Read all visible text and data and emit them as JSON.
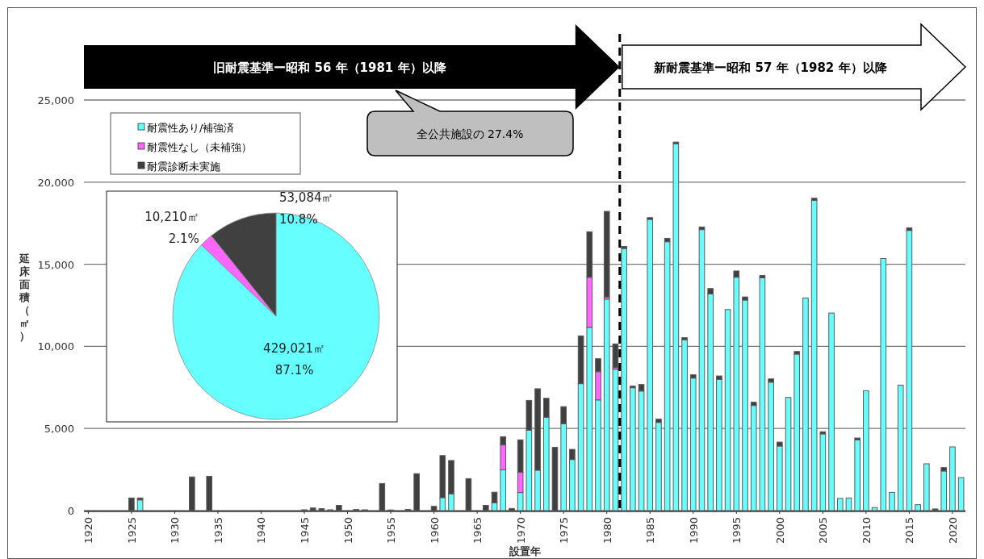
{
  "chart_data": [
    {
      "type": "bar",
      "stacked": true,
      "xlabel": "設置年",
      "ylabel": "延床面積（㎡）",
      "xlim": [
        1919.5,
        2021.5
      ],
      "xticks": [
        1920,
        1925,
        1930,
        1935,
        1940,
        1945,
        1950,
        1955,
        1960,
        1965,
        1970,
        1975,
        1980,
        1985,
        1990,
        1995,
        2000,
        2005,
        2010,
        2015,
        2020
      ],
      "ylim": [
        0,
        25000
      ],
      "yticks": [
        0,
        {
          "value": 5000,
          "label": "5,000"
        },
        {
          "value": 10000,
          "label": "10,000"
        },
        {
          "value": 15000,
          "label": "15,000"
        },
        {
          "value": 20000,
          "label": "20,000"
        },
        {
          "value": 25000,
          "label": "25,000"
        }
      ],
      "grid": "y",
      "legend": "top left",
      "x": [
        1925,
        1926,
        1932,
        1934,
        1945,
        1946,
        1947,
        1948,
        1949,
        1951,
        1952,
        1954,
        1955,
        1957,
        1958,
        1960,
        1961,
        1962,
        1964,
        1966,
        1967,
        1968,
        1969,
        1970,
        1971,
        1972,
        1973,
        1974,
        1975,
        1976,
        1977,
        1978,
        1979,
        1980,
        1981,
        1982,
        1983,
        1984,
        1985,
        1986,
        1987,
        1988,
        1989,
        1990,
        1991,
        1992,
        1993,
        1994,
        1995,
        1996,
        1997,
        1998,
        1999,
        2000,
        2001,
        2002,
        2003,
        2004,
        2005,
        2006,
        2007,
        2008,
        2009,
        2010,
        2011,
        2012,
        2013,
        2014,
        2015,
        2016,
        2017,
        2018,
        2019,
        2020,
        2021
      ],
      "series": [
        {
          "name": "耐震性あり/補強済",
          "color": "#66ffff",
          "values": [
            0,
            650,
            0,
            0,
            0,
            0,
            0,
            0,
            0,
            0,
            0,
            0,
            0,
            0,
            0,
            0,
            790,
            1020,
            0,
            0,
            480,
            2480,
            0,
            1100,
            4900,
            2460,
            5680,
            0,
            5290,
            3110,
            7730,
            11160,
            6740,
            12880,
            8610,
            15960,
            7480,
            7280,
            17730,
            5370,
            16370,
            22340,
            10400,
            8070,
            17110,
            13190,
            7990,
            12240,
            14210,
            12820,
            6400,
            14180,
            7820,
            3930,
            6890,
            9530,
            12950,
            18890,
            4670,
            12030,
            740,
            770,
            4310,
            7300,
            180,
            15350,
            1110,
            7640,
            17060,
            360,
            2850,
            0,
            2410,
            3880,
            2010
          ]
        },
        {
          "name": "耐震性なし（未補強）",
          "color": "#ff66ff",
          "values": [
            0,
            0,
            0,
            0,
            0,
            0,
            0,
            0,
            0,
            0,
            0,
            0,
            0,
            0,
            0,
            0,
            0,
            0,
            0,
            0,
            0,
            1520,
            0,
            1230,
            0,
            0,
            0,
            0,
            0,
            0,
            0,
            3050,
            1720,
            130,
            100,
            0,
            0,
            0,
            0,
            0,
            0,
            0,
            0,
            0,
            0,
            0,
            0,
            0,
            0,
            0,
            0,
            0,
            0,
            0,
            0,
            0,
            0,
            0,
            0,
            0,
            0,
            0,
            0,
            0,
            0,
            0,
            0,
            0,
            0,
            0,
            0,
            0,
            0,
            0,
            0
          ]
        },
        {
          "name": "耐震診断未実施",
          "color": "#404040",
          "values": [
            770,
            120,
            2050,
            2090,
            50,
            160,
            120,
            50,
            320,
            70,
            50,
            1650,
            40,
            70,
            2250,
            260,
            2560,
            2030,
            1950,
            320,
            640,
            500,
            130,
            1980,
            1810,
            4960,
            1160,
            3850,
            1040,
            620,
            2910,
            2770,
            790,
            5210,
            1440,
            130,
            100,
            400,
            110,
            200,
            210,
            100,
            130,
            200,
            160,
            330,
            210,
            0,
            380,
            190,
            200,
            140,
            200,
            240,
            0,
            160,
            0,
            130,
            130,
            0,
            0,
            0,
            110,
            0,
            0,
            0,
            0,
            0,
            160,
            0,
            0,
            100,
            210,
            0,
            0
          ]
        }
      ],
      "ref_lines": [
        {
          "axis": "x",
          "value": 1981.5,
          "line_style": "dashed",
          "color": "#000000"
        }
      ],
      "annotations": [
        "旧耐震基準ー昭和 56 年（1981 年）以降",
        "新耐震基準ー昭和 57 年（1982 年）以降",
        "全公共施設の 27.4%"
      ]
    },
    {
      "type": "pie",
      "categories": [
        null,
        null,
        null
      ],
      "values": [
        429021,
        10210,
        53084
      ],
      "colors": [
        "#66ffff",
        "#ff66ff",
        "#404040"
      ],
      "value_labels": [
        "429,021㎡ 87.1%",
        "10,210㎡ 2.1%",
        "53,084㎡ 10.8%"
      ]
    }
  ]
}
